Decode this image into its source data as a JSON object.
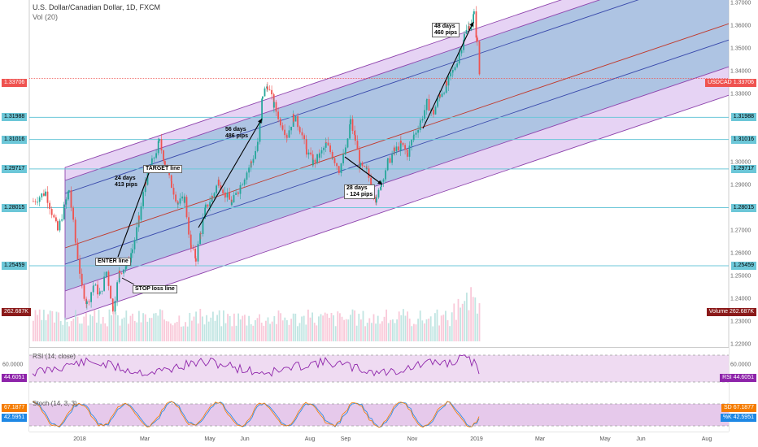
{
  "header": {
    "symbol_title": "U.S. Dollar/Canadian Dollar, 1D, FXCM",
    "vol_label": "Vol (20)"
  },
  "chart_data": {
    "type": "candlestick",
    "x_ticks": [
      "2018",
      "Mar",
      "May",
      "Jun",
      "Aug",
      "Sep",
      "Nov",
      "2019",
      "Mar",
      "May",
      "Jun",
      "Aug"
    ],
    "y_ticks": [
      "1.37000",
      "1.36000",
      "1.35000",
      "1.34000",
      "1.33000",
      "1.32000",
      "1.31000",
      "1.30000",
      "1.29000",
      "1.28000",
      "1.27000",
      "1.26000",
      "1.25000",
      "1.24000",
      "1.23000",
      "1.22000"
    ],
    "y_range": [
      1.2185,
      1.3715
    ],
    "current_price": "1.33706",
    "price_levels": [
      "1.31988",
      "1.31016",
      "1.29717",
      "1.28015",
      "1.25459"
    ],
    "volume_label": "262.687K",
    "volume_name": "Volume",
    "price_tag_name": "USDCAD",
    "annotations": [
      {
        "text": "24 days\n413 pips"
      },
      {
        "text": "TARGET line"
      },
      {
        "text": "56 days\n486 pips"
      },
      {
        "text": "48 days\n460 pips"
      },
      {
        "text": "28 days\n- 124 pips"
      },
      {
        "text": "ENTER line"
      },
      {
        "text": "STOP loss line"
      }
    ],
    "rsi": {
      "label": "RSI (14, close)",
      "value": "44.6051",
      "tick": "60.0000",
      "tag": "RSI"
    },
    "stoch": {
      "label": "Stoch (14, 3, 3)",
      "k": "67.1877",
      "d": "42.5951",
      "tag_k": "SD",
      "tag_d": "%K"
    },
    "colors": {
      "up": "#26a69a",
      "down": "#ef5350",
      "channel_fill": "#7fb8d6",
      "channel_outer": "#c89ee6",
      "channel_line": "#8e44ad",
      "mid_line": "#c0392b",
      "level_line": "#6cc7d8",
      "blue_line": "#3949ab"
    }
  }
}
